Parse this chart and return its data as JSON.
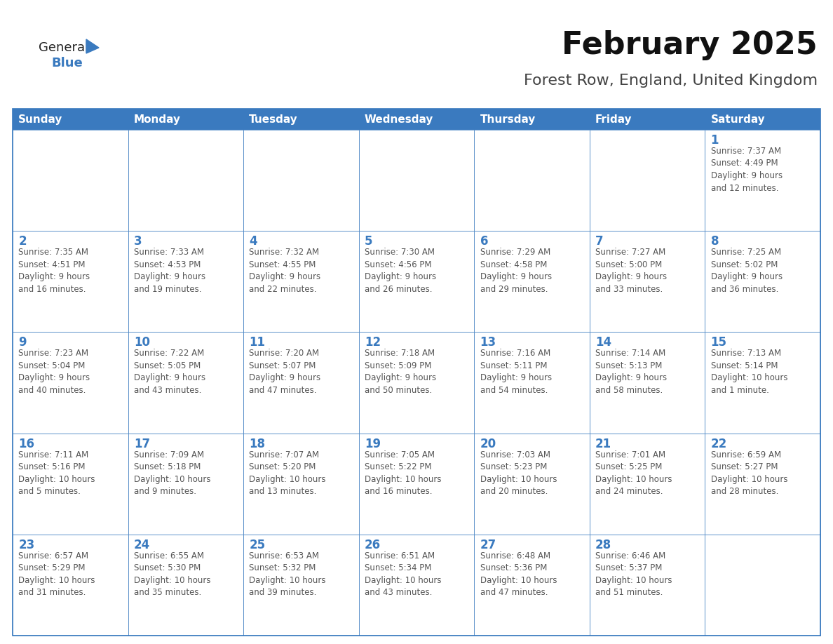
{
  "title": "February 2025",
  "subtitle": "Forest Row, England, United Kingdom",
  "header_color": "#3a7abf",
  "header_text_color": "#ffffff",
  "cell_bg_color": "#ffffff",
  "cell_alt_bg_color": "#f0f4f8",
  "cell_border_color": "#3a7abf",
  "day_number_color": "#3a7abf",
  "cell_text_color": "#555555",
  "background_color": "#ffffff",
  "days_of_week": [
    "Sunday",
    "Monday",
    "Tuesday",
    "Wednesday",
    "Thursday",
    "Friday",
    "Saturday"
  ],
  "weeks": [
    [
      {
        "day": null,
        "info": null
      },
      {
        "day": null,
        "info": null
      },
      {
        "day": null,
        "info": null
      },
      {
        "day": null,
        "info": null
      },
      {
        "day": null,
        "info": null
      },
      {
        "day": null,
        "info": null
      },
      {
        "day": 1,
        "info": "Sunrise: 7:37 AM\nSunset: 4:49 PM\nDaylight: 9 hours\nand 12 minutes."
      }
    ],
    [
      {
        "day": 2,
        "info": "Sunrise: 7:35 AM\nSunset: 4:51 PM\nDaylight: 9 hours\nand 16 minutes."
      },
      {
        "day": 3,
        "info": "Sunrise: 7:33 AM\nSunset: 4:53 PM\nDaylight: 9 hours\nand 19 minutes."
      },
      {
        "day": 4,
        "info": "Sunrise: 7:32 AM\nSunset: 4:55 PM\nDaylight: 9 hours\nand 22 minutes."
      },
      {
        "day": 5,
        "info": "Sunrise: 7:30 AM\nSunset: 4:56 PM\nDaylight: 9 hours\nand 26 minutes."
      },
      {
        "day": 6,
        "info": "Sunrise: 7:29 AM\nSunset: 4:58 PM\nDaylight: 9 hours\nand 29 minutes."
      },
      {
        "day": 7,
        "info": "Sunrise: 7:27 AM\nSunset: 5:00 PM\nDaylight: 9 hours\nand 33 minutes."
      },
      {
        "day": 8,
        "info": "Sunrise: 7:25 AM\nSunset: 5:02 PM\nDaylight: 9 hours\nand 36 minutes."
      }
    ],
    [
      {
        "day": 9,
        "info": "Sunrise: 7:23 AM\nSunset: 5:04 PM\nDaylight: 9 hours\nand 40 minutes."
      },
      {
        "day": 10,
        "info": "Sunrise: 7:22 AM\nSunset: 5:05 PM\nDaylight: 9 hours\nand 43 minutes."
      },
      {
        "day": 11,
        "info": "Sunrise: 7:20 AM\nSunset: 5:07 PM\nDaylight: 9 hours\nand 47 minutes."
      },
      {
        "day": 12,
        "info": "Sunrise: 7:18 AM\nSunset: 5:09 PM\nDaylight: 9 hours\nand 50 minutes."
      },
      {
        "day": 13,
        "info": "Sunrise: 7:16 AM\nSunset: 5:11 PM\nDaylight: 9 hours\nand 54 minutes."
      },
      {
        "day": 14,
        "info": "Sunrise: 7:14 AM\nSunset: 5:13 PM\nDaylight: 9 hours\nand 58 minutes."
      },
      {
        "day": 15,
        "info": "Sunrise: 7:13 AM\nSunset: 5:14 PM\nDaylight: 10 hours\nand 1 minute."
      }
    ],
    [
      {
        "day": 16,
        "info": "Sunrise: 7:11 AM\nSunset: 5:16 PM\nDaylight: 10 hours\nand 5 minutes."
      },
      {
        "day": 17,
        "info": "Sunrise: 7:09 AM\nSunset: 5:18 PM\nDaylight: 10 hours\nand 9 minutes."
      },
      {
        "day": 18,
        "info": "Sunrise: 7:07 AM\nSunset: 5:20 PM\nDaylight: 10 hours\nand 13 minutes."
      },
      {
        "day": 19,
        "info": "Sunrise: 7:05 AM\nSunset: 5:22 PM\nDaylight: 10 hours\nand 16 minutes."
      },
      {
        "day": 20,
        "info": "Sunrise: 7:03 AM\nSunset: 5:23 PM\nDaylight: 10 hours\nand 20 minutes."
      },
      {
        "day": 21,
        "info": "Sunrise: 7:01 AM\nSunset: 5:25 PM\nDaylight: 10 hours\nand 24 minutes."
      },
      {
        "day": 22,
        "info": "Sunrise: 6:59 AM\nSunset: 5:27 PM\nDaylight: 10 hours\nand 28 minutes."
      }
    ],
    [
      {
        "day": 23,
        "info": "Sunrise: 6:57 AM\nSunset: 5:29 PM\nDaylight: 10 hours\nand 31 minutes."
      },
      {
        "day": 24,
        "info": "Sunrise: 6:55 AM\nSunset: 5:30 PM\nDaylight: 10 hours\nand 35 minutes."
      },
      {
        "day": 25,
        "info": "Sunrise: 6:53 AM\nSunset: 5:32 PM\nDaylight: 10 hours\nand 39 minutes."
      },
      {
        "day": 26,
        "info": "Sunrise: 6:51 AM\nSunset: 5:34 PM\nDaylight: 10 hours\nand 43 minutes."
      },
      {
        "day": 27,
        "info": "Sunrise: 6:48 AM\nSunset: 5:36 PM\nDaylight: 10 hours\nand 47 minutes."
      },
      {
        "day": 28,
        "info": "Sunrise: 6:46 AM\nSunset: 5:37 PM\nDaylight: 10 hours\nand 51 minutes."
      },
      {
        "day": null,
        "info": null
      }
    ]
  ],
  "logo_general_color": "#222222",
  "logo_blue_color": "#3a7abf",
  "title_fontsize": 32,
  "subtitle_fontsize": 16,
  "header_fontsize": 11,
  "day_number_fontsize": 12,
  "cell_text_fontsize": 8.5
}
